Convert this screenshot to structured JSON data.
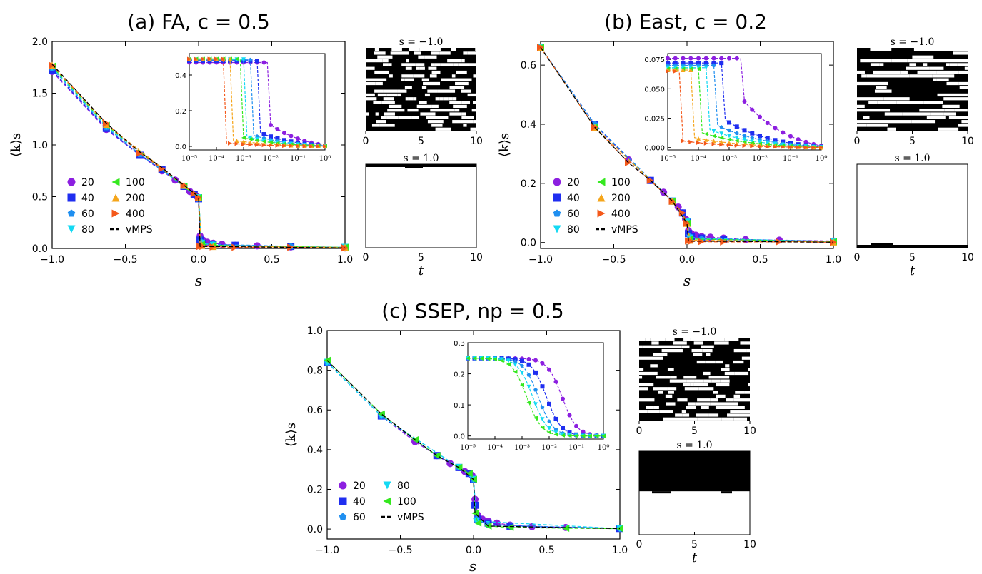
{
  "figure": {
    "panel_a": {
      "title": "(a) FA, c = 0.5",
      "xlabel": "s",
      "ylabel": "⟨k⟩s",
      "inset_xlabel_ticks": [
        "10⁻⁵",
        "10⁻⁴",
        "10⁻³",
        "10⁻²",
        "10⁻¹",
        "10⁰"
      ],
      "traj_top_label": "s = −1.0",
      "traj_bottom_label": "s = 1.0",
      "traj_xlabel": "t"
    },
    "panel_b": {
      "title": "(b) East, c = 0.2",
      "xlabel": "s",
      "ylabel": "⟨k⟩s",
      "traj_top_label": "s = −1.0",
      "traj_bottom_label": "s = 1.0",
      "traj_xlabel": "t"
    },
    "panel_c": {
      "title": "(c) SSEP, np = 0.5",
      "xlabel": "s",
      "ylabel": "⟨k⟩s",
      "traj_top_label": "s = −1.0",
      "traj_bottom_label": "s = 1.0",
      "traj_xlabel": "t"
    },
    "colors": {
      "20": "#8c1fe0",
      "40": "#1f2ef0",
      "60": "#1f8ff0",
      "80": "#13d9f3",
      "100": "#35e81f",
      "200": "#f5a51a",
      "400": "#f4581a",
      "vMPS": "#000000"
    }
  },
  "chart_data": [
    {
      "type": "line",
      "panel": "a",
      "title": "(a) FA, c = 0.5",
      "xlabel": "s",
      "ylabel": "⟨k⟩s",
      "xlim": [
        -1.0,
        1.0
      ],
      "ylim": [
        0.0,
        2.0
      ],
      "xticks": [
        "−1.0",
        "−0.5",
        "0.0",
        "0.5",
        "1.0"
      ],
      "yticks": [
        "0.0",
        "0.5",
        "1.0",
        "1.5",
        "2.0"
      ],
      "series": [
        {
          "name": "20",
          "marker": "circle",
          "x": [
            -1.0,
            -0.63,
            -0.4,
            -0.25,
            -0.16,
            -0.1,
            -0.06,
            -0.03,
            -0.01,
            0.0,
            0.01,
            0.03,
            0.06,
            0.1,
            0.16,
            0.25,
            0.4,
            0.63,
            1.0
          ],
          "y": [
            1.71,
            1.15,
            0.9,
            0.75,
            0.66,
            0.6,
            0.55,
            0.52,
            0.5,
            0.48,
            0.12,
            0.08,
            0.06,
            0.05,
            0.04,
            0.03,
            0.025,
            0.015,
            0.005
          ]
        },
        {
          "name": "40",
          "marker": "square",
          "x": [
            -1.0,
            -0.63,
            -0.4,
            -0.25,
            -0.1,
            -0.03,
            0.0,
            0.01,
            0.03,
            0.1,
            0.25,
            0.63,
            1.0
          ],
          "y": [
            1.72,
            1.16,
            0.9,
            0.76,
            0.6,
            0.52,
            0.48,
            0.08,
            0.05,
            0.04,
            0.03,
            0.02,
            0.01
          ]
        },
        {
          "name": "60",
          "marker": "pentagon",
          "x": [
            -1.0,
            -0.63,
            -0.4,
            -0.1,
            0.0,
            0.02,
            0.1,
            0.63,
            1.0
          ],
          "y": [
            1.74,
            1.17,
            0.91,
            0.6,
            0.48,
            0.06,
            0.04,
            0.02,
            0.01
          ]
        },
        {
          "name": "80",
          "marker": "triangle-down",
          "x": [
            -1.0,
            -0.63,
            -0.1,
            0.0,
            0.02,
            0.1,
            1.0
          ],
          "y": [
            1.75,
            1.18,
            0.6,
            0.49,
            0.05,
            0.03,
            0.01
          ]
        },
        {
          "name": "100",
          "marker": "triangle-left",
          "x": [
            -1.0,
            -0.63,
            -0.1,
            0.0,
            0.02,
            0.1,
            1.0
          ],
          "y": [
            1.76,
            1.19,
            0.6,
            0.49,
            0.04,
            0.03,
            0.01
          ]
        },
        {
          "name": "200",
          "marker": "triangle-up",
          "x": [
            -1.0,
            -0.63,
            -0.1,
            0.0,
            0.02,
            0.1,
            1.0
          ],
          "y": [
            1.77,
            1.2,
            0.61,
            0.49,
            0.03,
            0.02,
            0.01
          ]
        },
        {
          "name": "400",
          "marker": "triangle-right",
          "x": [
            -1.0,
            -0.63,
            -0.4,
            -0.25,
            -0.1,
            -0.03,
            0.0,
            0.01,
            0.03,
            0.1,
            0.25,
            0.63,
            1.0
          ],
          "y": [
            1.77,
            1.21,
            0.92,
            0.77,
            0.61,
            0.53,
            0.49,
            0.02,
            0.02,
            0.015,
            0.01,
            0.01,
            0.005
          ]
        },
        {
          "name": "vMPS",
          "marker": "none",
          "x": [
            -1.0,
            -0.63,
            -0.4,
            -0.25,
            -0.1,
            0.0,
            0.01,
            1.0
          ],
          "y": [
            1.78,
            1.21,
            0.93,
            0.78,
            0.61,
            0.5,
            0.02,
            0.005
          ]
        }
      ],
      "inset": {
        "xscale": "log",
        "xlim": [
          1e-05,
          1.0
        ],
        "ylim": [
          -0.02,
          0.52
        ],
        "xticks": [
          "10⁻⁵",
          "10⁻⁴",
          "10⁻³",
          "10⁻²",
          "10⁻¹",
          "10⁰"
        ],
        "yticks": [
          "0.0",
          "0.2",
          "0.4"
        ],
        "transitions": [
          {
            "name": "20",
            "s_c": 0.01,
            "plateau": 0.47,
            "tail": 0.12
          },
          {
            "name": "40",
            "s_c": 0.0035,
            "plateau": 0.48,
            "tail": 0.08
          },
          {
            "name": "60",
            "s_c": 0.002,
            "plateau": 0.485,
            "tail": 0.065
          },
          {
            "name": "80",
            "s_c": 0.0012,
            "plateau": 0.487,
            "tail": 0.055
          },
          {
            "name": "100",
            "s_c": 0.0009,
            "plateau": 0.49,
            "tail": 0.05
          },
          {
            "name": "200",
            "s_c": 0.0004,
            "plateau": 0.49,
            "tail": 0.035
          },
          {
            "name": "400",
            "s_c": 0.00018,
            "plateau": 0.49,
            "tail": 0.02
          }
        ]
      }
    },
    {
      "type": "line",
      "panel": "b",
      "title": "(b) East, c = 0.2",
      "xlabel": "s",
      "ylabel": "⟨k⟩s",
      "xlim": [
        -1.0,
        1.0
      ],
      "ylim": [
        -0.02,
        0.68
      ],
      "xticks": [
        "−1.0",
        "−0.5",
        "0.0",
        "0.5",
        "1.0"
      ],
      "yticks": [
        "0.0",
        "0.2",
        "0.4",
        "0.6"
      ],
      "series": [
        {
          "name": "20",
          "marker": "circle",
          "x": [
            -1.0,
            -0.63,
            -0.4,
            -0.25,
            -0.16,
            -0.1,
            -0.06,
            -0.03,
            -0.01,
            0.0,
            0.01,
            0.03,
            0.06,
            0.1,
            0.16,
            0.25,
            0.4,
            0.63,
            1.0
          ],
          "y": [
            0.66,
            0.4,
            0.28,
            0.21,
            0.17,
            0.14,
            0.12,
            0.1,
            0.08,
            0.075,
            0.04,
            0.03,
            0.025,
            0.02,
            0.018,
            0.015,
            0.01,
            0.008,
            0.005
          ]
        },
        {
          "name": "40",
          "marker": "square",
          "x": [
            -1.0,
            -0.63,
            -0.25,
            -0.1,
            -0.03,
            0.0,
            0.01,
            0.03,
            0.1,
            0.25,
            1.0
          ],
          "y": [
            0.66,
            0.4,
            0.21,
            0.14,
            0.1,
            0.07,
            0.03,
            0.02,
            0.015,
            0.01,
            0.004
          ]
        },
        {
          "name": "60",
          "marker": "pentagon",
          "x": [
            -1.0,
            -0.63,
            -0.1,
            0.0,
            0.02,
            0.1,
            1.0
          ],
          "y": [
            0.66,
            0.4,
            0.14,
            0.07,
            0.02,
            0.012,
            0.004
          ]
        },
        {
          "name": "80",
          "marker": "triangle-down",
          "x": [
            -1.0,
            -0.63,
            -0.1,
            0.0,
            0.02,
            1.0
          ],
          "y": [
            0.66,
            0.39,
            0.14,
            0.07,
            0.015,
            0.003
          ]
        },
        {
          "name": "100",
          "marker": "triangle-left",
          "x": [
            -1.0,
            -0.63,
            -0.1,
            0.0,
            0.02,
            1.0
          ],
          "y": [
            0.66,
            0.39,
            0.14,
            0.065,
            0.012,
            0.003
          ]
        },
        {
          "name": "200",
          "marker": "triangle-up",
          "x": [
            -1.0,
            -0.63,
            -0.1,
            0.0,
            0.02,
            1.0
          ],
          "y": [
            0.66,
            0.39,
            0.14,
            0.065,
            0.008,
            0.002
          ]
        },
        {
          "name": "400",
          "marker": "triangle-right",
          "x": [
            -1.0,
            -0.63,
            -0.4,
            -0.25,
            -0.1,
            -0.03,
            0.0,
            0.01,
            0.03,
            0.1,
            0.25,
            0.63,
            1.0
          ],
          "y": [
            0.66,
            0.39,
            0.27,
            0.21,
            0.14,
            0.1,
            0.065,
            0.005,
            0.004,
            0.003,
            0.002,
            0.002,
            0.001
          ]
        },
        {
          "name": "vMPS",
          "marker": "none",
          "x": [
            -1.0,
            -0.63,
            -0.4,
            -0.25,
            -0.1,
            0.0,
            0.01,
            1.0
          ],
          "y": [
            0.66,
            0.39,
            0.27,
            0.21,
            0.14,
            0.065,
            0.005,
            0.001
          ]
        }
      ],
      "inset": {
        "xscale": "log",
        "xlim": [
          1e-05,
          1.0
        ],
        "ylim": [
          -0.002,
          0.08
        ],
        "xticks": [
          "10⁻⁵",
          "10⁻⁴",
          "10⁻³",
          "10⁻²",
          "10⁻¹",
          "10⁰"
        ],
        "yticks": [
          "0.000",
          "0.025",
          "0.050",
          "0.075"
        ],
        "transitions": [
          {
            "name": "20",
            "s_c": 0.003,
            "plateau": 0.076,
            "tail": 0.04
          },
          {
            "name": "40",
            "s_c": 0.0006,
            "plateau": 0.072,
            "tail": 0.025
          },
          {
            "name": "60",
            "s_c": 0.00035,
            "plateau": 0.07,
            "tail": 0.02
          },
          {
            "name": "80",
            "s_c": 0.0002,
            "plateau": 0.068,
            "tail": 0.016
          },
          {
            "name": "100",
            "s_c": 0.00012,
            "plateau": 0.067,
            "tail": 0.013
          },
          {
            "name": "200",
            "s_c": 6e-05,
            "plateau": 0.066,
            "tail": 0.009
          },
          {
            "name": "400",
            "s_c": 2.5e-05,
            "plateau": 0.065,
            "tail": 0.006
          }
        ]
      }
    },
    {
      "type": "line",
      "panel": "c",
      "title": "(c) SSEP, np = 0.5",
      "xlabel": "s",
      "ylabel": "⟨k⟩s",
      "xlim": [
        -1.0,
        1.0
      ],
      "ylim": [
        -0.05,
        1.0
      ],
      "xticks": [
        "−1.0",
        "−0.5",
        "0.0",
        "0.5",
        "1.0"
      ],
      "yticks": [
        "0.0",
        "0.2",
        "0.4",
        "0.6",
        "0.8",
        "1.0"
      ],
      "series": [
        {
          "name": "20",
          "marker": "circle",
          "x": [
            -1.0,
            -0.63,
            -0.4,
            -0.25,
            -0.16,
            -0.1,
            -0.06,
            -0.03,
            -0.01,
            0.0,
            0.01,
            0.03,
            0.06,
            0.1,
            0.16,
            0.25,
            0.4,
            0.63,
            1.0
          ],
          "y": [
            0.84,
            0.57,
            0.44,
            0.37,
            0.33,
            0.31,
            0.29,
            0.28,
            0.27,
            0.25,
            0.15,
            0.07,
            0.05,
            0.04,
            0.03,
            0.02,
            0.012,
            0.008,
            0.004
          ]
        },
        {
          "name": "40",
          "marker": "square",
          "x": [
            -1.0,
            -0.63,
            -0.25,
            -0.1,
            -0.03,
            0.0,
            0.01,
            0.03,
            0.1,
            0.25,
            1.0
          ],
          "y": [
            0.84,
            0.57,
            0.37,
            0.31,
            0.28,
            0.25,
            0.12,
            0.05,
            0.03,
            0.015,
            0.003
          ]
        },
        {
          "name": "60",
          "marker": "pentagon",
          "x": [
            -1.0,
            -0.63,
            -0.1,
            0.0,
            0.02,
            0.1,
            1.0
          ],
          "y": [
            0.84,
            0.57,
            0.31,
            0.25,
            0.05,
            0.02,
            0.003
          ]
        },
        {
          "name": "80",
          "marker": "triangle-down",
          "x": [
            -1.0,
            -0.63,
            -0.1,
            0.0,
            0.02,
            1.0
          ],
          "y": [
            0.84,
            0.57,
            0.31,
            0.25,
            0.04,
            0.002
          ]
        },
        {
          "name": "100",
          "marker": "triangle-left",
          "x": [
            -1.0,
            -0.63,
            -0.4,
            -0.25,
            -0.1,
            -0.03,
            0.0,
            0.01,
            0.03,
            0.1,
            0.25,
            0.63,
            1.0
          ],
          "y": [
            0.85,
            0.58,
            0.45,
            0.37,
            0.31,
            0.28,
            0.25,
            0.08,
            0.03,
            0.015,
            0.008,
            0.004,
            0.002
          ]
        },
        {
          "name": "vMPS",
          "marker": "none",
          "x": [
            -1.0,
            -0.63,
            -0.4,
            -0.25,
            -0.1,
            0.0,
            0.01,
            0.1,
            1.0
          ],
          "y": [
            0.85,
            0.58,
            0.45,
            0.37,
            0.31,
            0.25,
            0.08,
            0.015,
            0.002
          ]
        }
      ],
      "inset": {
        "xscale": "log",
        "xlim": [
          1e-05,
          1.0
        ],
        "ylim": [
          -0.01,
          0.3
        ],
        "xticks": [
          "10⁻⁵",
          "10⁻⁴",
          "10⁻³",
          "10⁻²",
          "10⁻¹",
          "10⁰"
        ],
        "yticks": [
          "0.0",
          "0.1",
          "0.2",
          "0.3"
        ],
        "transitions": [
          {
            "name": "20",
            "s_c": 0.03,
            "plateau": 0.25
          },
          {
            "name": "40",
            "s_c": 0.008,
            "plateau": 0.25
          },
          {
            "name": "60",
            "s_c": 0.004,
            "plateau": 0.25
          },
          {
            "name": "80",
            "s_c": 0.0025,
            "plateau": 0.25
          },
          {
            "name": "100",
            "s_c": 0.0015,
            "plateau": 0.25
          }
        ]
      }
    }
  ]
}
